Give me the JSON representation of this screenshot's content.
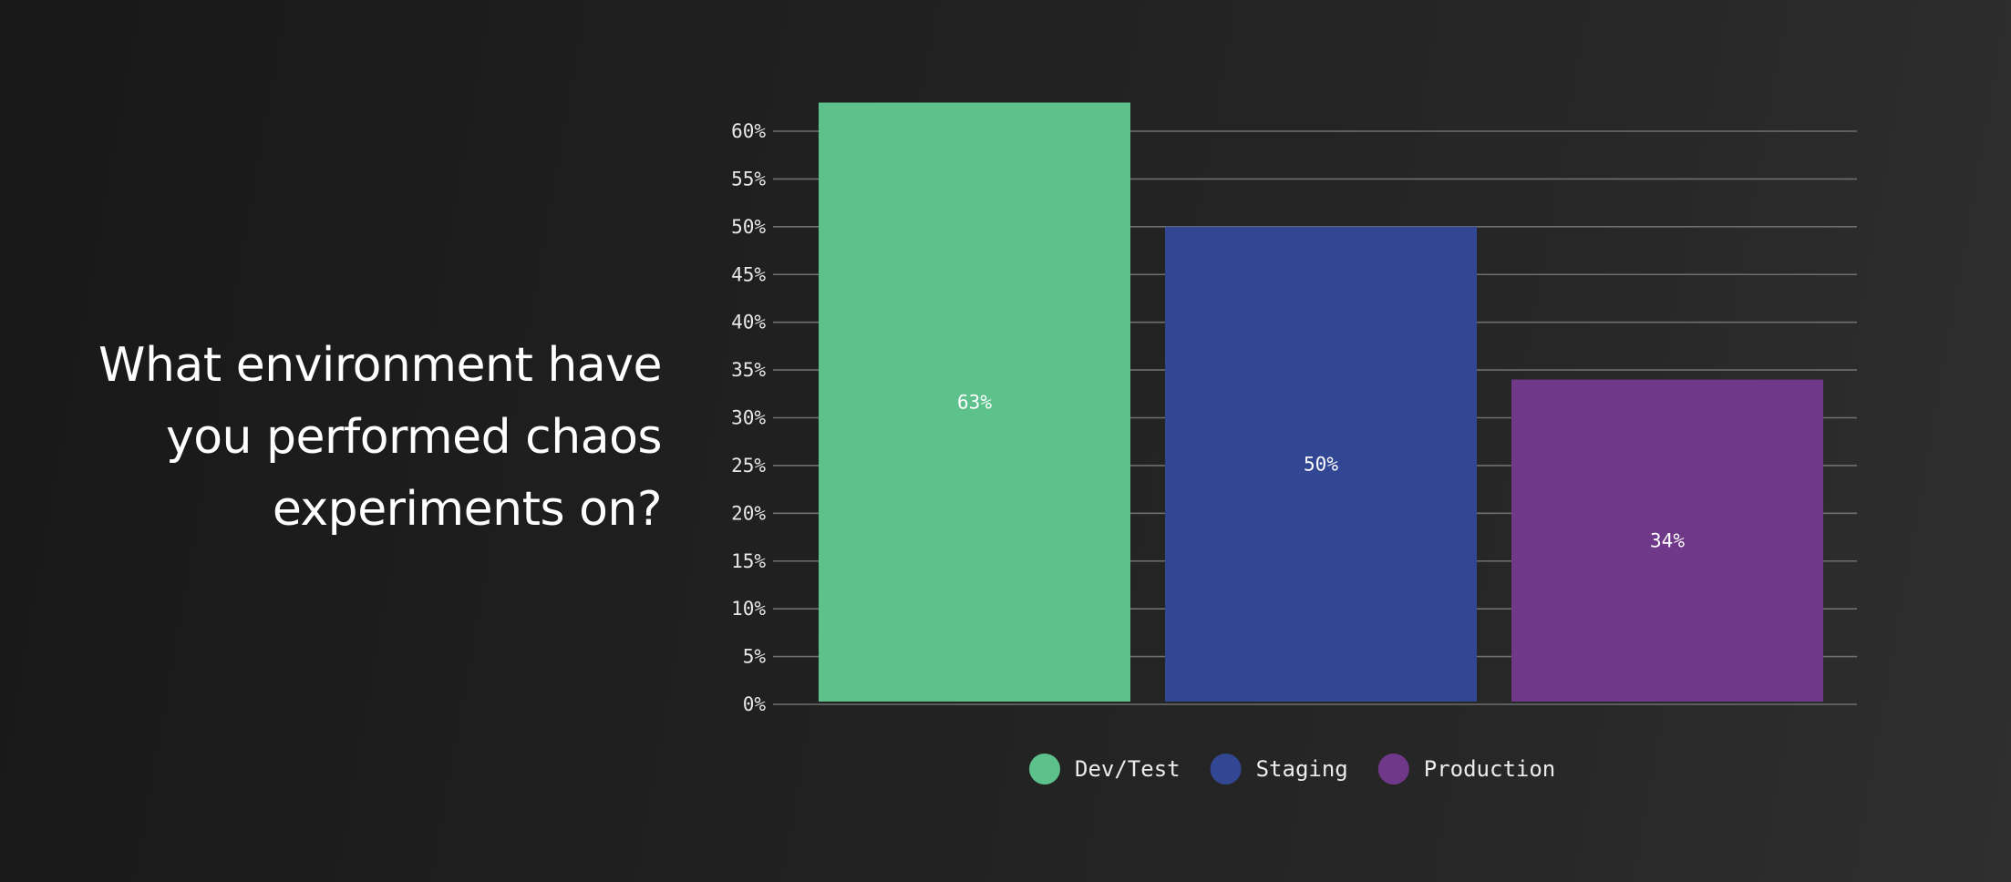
{
  "question": "What environment have you performed chaos experiments on?",
  "chart_data": {
    "type": "bar",
    "title": "",
    "xlabel": "",
    "ylabel": "",
    "categories": [
      "Dev/Test",
      "Staging",
      "Production"
    ],
    "values": [
      63,
      50,
      34
    ],
    "value_labels": [
      "63%",
      "50%",
      "34%"
    ],
    "colors": [
      "#5dc18c",
      "#324793",
      "#703888"
    ],
    "ylim": [
      0,
      60
    ],
    "yticks": [
      0,
      5,
      10,
      15,
      20,
      25,
      30,
      35,
      40,
      45,
      50,
      55,
      60
    ],
    "ytick_labels": [
      "0%",
      "5%",
      "10%",
      "15%",
      "20%",
      "25%",
      "30%",
      "35%",
      "40%",
      "45%",
      "50%",
      "55%",
      "60%"
    ],
    "grid": true,
    "legend": {
      "placement": "bottom-center",
      "entries": [
        "Dev/Test",
        "Staging",
        "Production"
      ]
    }
  }
}
